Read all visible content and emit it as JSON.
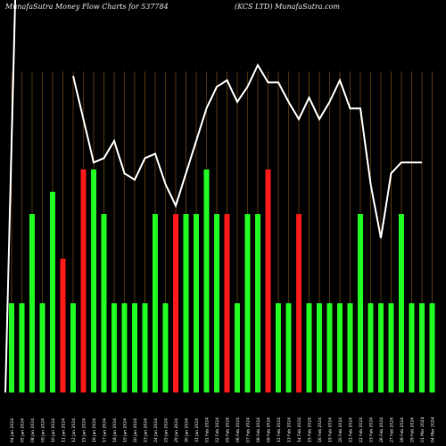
{
  "header": {
    "left": "MunafaSutra Money Flow Charts for 537784",
    "right": "(KCS LTD) MunafaSutra.com"
  },
  "colors": {
    "background": "#000000",
    "up": "#22ff22",
    "down": "#ff1a1a",
    "line": "#ffffff",
    "grid": "#8a5a1a"
  },
  "chart_data": {
    "type": "bar",
    "x": [
      "04 Jan 2024",
      "05 Jan 2024",
      "08 Jan 2024",
      "09 Jan 2024",
      "10 Jan 2024",
      "11 Jan 2024",
      "12 Jan 2024",
      "15 Jan 2024",
      "16 Jan 2024",
      "17 Jan 2024",
      "18 Jan 2024",
      "19 Jan 2024",
      "20 Jan 2024",
      "23 Jan 2024",
      "24 Jan 2024",
      "25 Jan 2024",
      "29 Jan 2024",
      "30 Jan 2024",
      "31 Jan 2024",
      "01 Feb 2024",
      "02 Feb 2024",
      "05 Feb 2024",
      "06 Feb 2024",
      "07 Feb 2024",
      "08 Feb 2024",
      "09 Feb 2024",
      "12 Feb 2024",
      "13 Feb 2024",
      "14 Feb 2024",
      "15 Feb 2024",
      "16 Feb 2024",
      "19 Feb 2024",
      "20 Feb 2024",
      "21 Feb 2024",
      "22 Feb 2024",
      "23 Feb 2024",
      "26 Feb 2024",
      "27 Feb 2024",
      "28 Feb 2024",
      "29 Feb 2024",
      "01 Mar 2024",
      "04 Mar 2024"
    ],
    "series": [
      {
        "values": [
          2,
          2,
          4,
          2,
          4.5,
          3,
          2,
          5,
          5,
          4,
          2,
          2,
          2,
          2,
          4,
          2,
          4,
          4,
          4,
          5,
          4,
          4,
          2,
          4,
          4,
          5,
          2,
          2,
          4,
          2,
          2,
          2,
          2,
          2,
          4,
          2,
          2,
          2,
          4,
          2,
          2,
          2
        ],
        "colors": [
          "up",
          "up",
          "up",
          "up",
          "up",
          "down",
          "up",
          "down",
          "up",
          "up",
          "up",
          "up",
          "up",
          "up",
          "up",
          "up",
          "down",
          "up",
          "up",
          "up",
          "up",
          "down",
          "up",
          "up",
          "up",
          "down",
          "up",
          "up",
          "down",
          "up",
          "up",
          "up",
          "up",
          "up",
          "up",
          "up",
          "up",
          "up",
          "up",
          "up",
          "up",
          "up"
        ]
      },
      {
        "values": [
          null,
          null,
          null,
          null,
          null,
          null,
          100,
          80,
          60,
          62,
          70,
          55,
          52,
          62,
          64,
          50,
          40,
          55,
          70,
          85,
          95,
          98,
          88,
          95,
          105,
          97,
          97,
          88,
          80,
          90,
          80,
          88,
          98,
          85,
          85,
          50,
          25,
          55,
          60,
          60,
          60,
          null
        ]
      }
    ],
    "ylim": [
      0,
      5
    ]
  }
}
